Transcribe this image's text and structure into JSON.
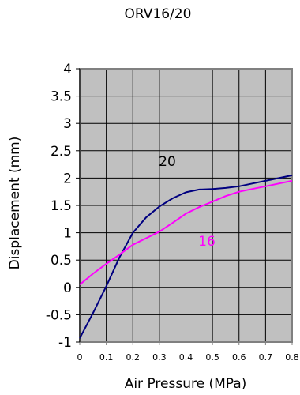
{
  "chart_data": {
    "type": "line",
    "title": "ORV16/20",
    "xlabel": "Air Pressure (MPa)",
    "ylabel": "Displacement (mm)",
    "xlim": [
      0,
      0.8
    ],
    "ylim": [
      -1,
      4
    ],
    "xticks": [
      "0",
      "0.1",
      "0.2",
      "0.3",
      "0.4",
      "0.5",
      "0.6",
      "0.7",
      "0.8"
    ],
    "yticks": [
      "-1",
      "-0.5",
      "0",
      "0.5",
      "1",
      "1.5",
      "2",
      "2.5",
      "3",
      "3.5",
      "4"
    ],
    "grid": true,
    "plot_background": "#c0c0c0",
    "series": [
      {
        "name": "20",
        "color": "#000080",
        "x": [
          0,
          0.05,
          0.1,
          0.15,
          0.2,
          0.25,
          0.3,
          0.35,
          0.4,
          0.45,
          0.5,
          0.55,
          0.6,
          0.65,
          0.7,
          0.75,
          0.8
        ],
        "y": [
          -0.93,
          -0.47,
          0.02,
          0.55,
          1.0,
          1.28,
          1.48,
          1.63,
          1.74,
          1.79,
          1.8,
          1.82,
          1.85,
          1.9,
          1.95,
          2.0,
          2.05
        ]
      },
      {
        "name": "16",
        "color": "#ff00ff",
        "x": [
          0,
          0.05,
          0.1,
          0.15,
          0.2,
          0.25,
          0.3,
          0.35,
          0.4,
          0.45,
          0.5,
          0.55,
          0.6,
          0.65,
          0.7,
          0.75,
          0.8
        ],
        "y": [
          0.05,
          0.25,
          0.43,
          0.6,
          0.78,
          0.9,
          1.02,
          1.18,
          1.35,
          1.47,
          1.57,
          1.67,
          1.75,
          1.8,
          1.85,
          1.9,
          1.95
        ]
      }
    ]
  }
}
